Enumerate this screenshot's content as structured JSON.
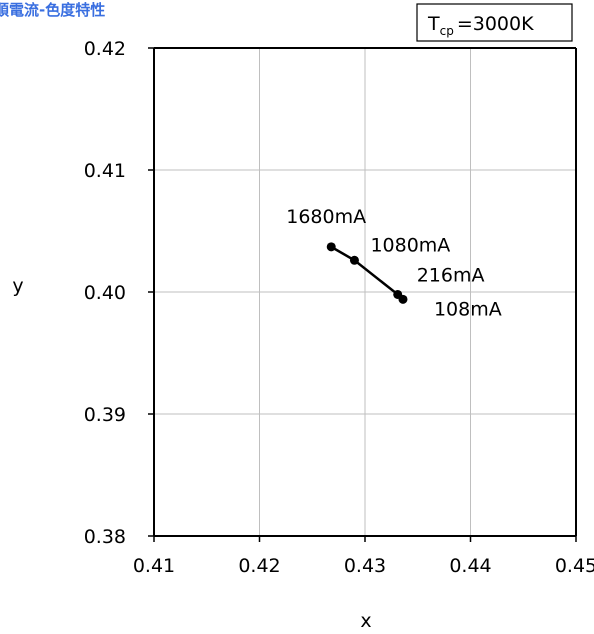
{
  "title": "順電流-色度特性",
  "annotation_box": {
    "symbol": "T",
    "subscript": "cp",
    "value_text": "=3000K"
  },
  "chart_data": {
    "type": "line",
    "xlabel": "x",
    "ylabel": "y",
    "xlim": [
      0.41,
      0.45
    ],
    "ylim": [
      0.38,
      0.42
    ],
    "x_ticks": [
      "0.41",
      "0.42",
      "0.43",
      "0.44",
      "0.45"
    ],
    "y_ticks": [
      "0.38",
      "0.39",
      "0.40",
      "0.41",
      "0.42"
    ],
    "grid": true,
    "series": [
      {
        "points": [
          {
            "x": 0.4268,
            "y": 0.4037,
            "label": "1680mA"
          },
          {
            "x": 0.429,
            "y": 0.4026,
            "label": "1080mA"
          },
          {
            "x": 0.4331,
            "y": 0.3998,
            "label": "216mA"
          },
          {
            "x": 0.4336,
            "y": 0.3994,
            "label": "108mA"
          }
        ]
      }
    ]
  },
  "colors": {
    "title": "#3a6fe0",
    "line": "#000000",
    "grid": "#bfbfbf",
    "axis": "#000000"
  }
}
